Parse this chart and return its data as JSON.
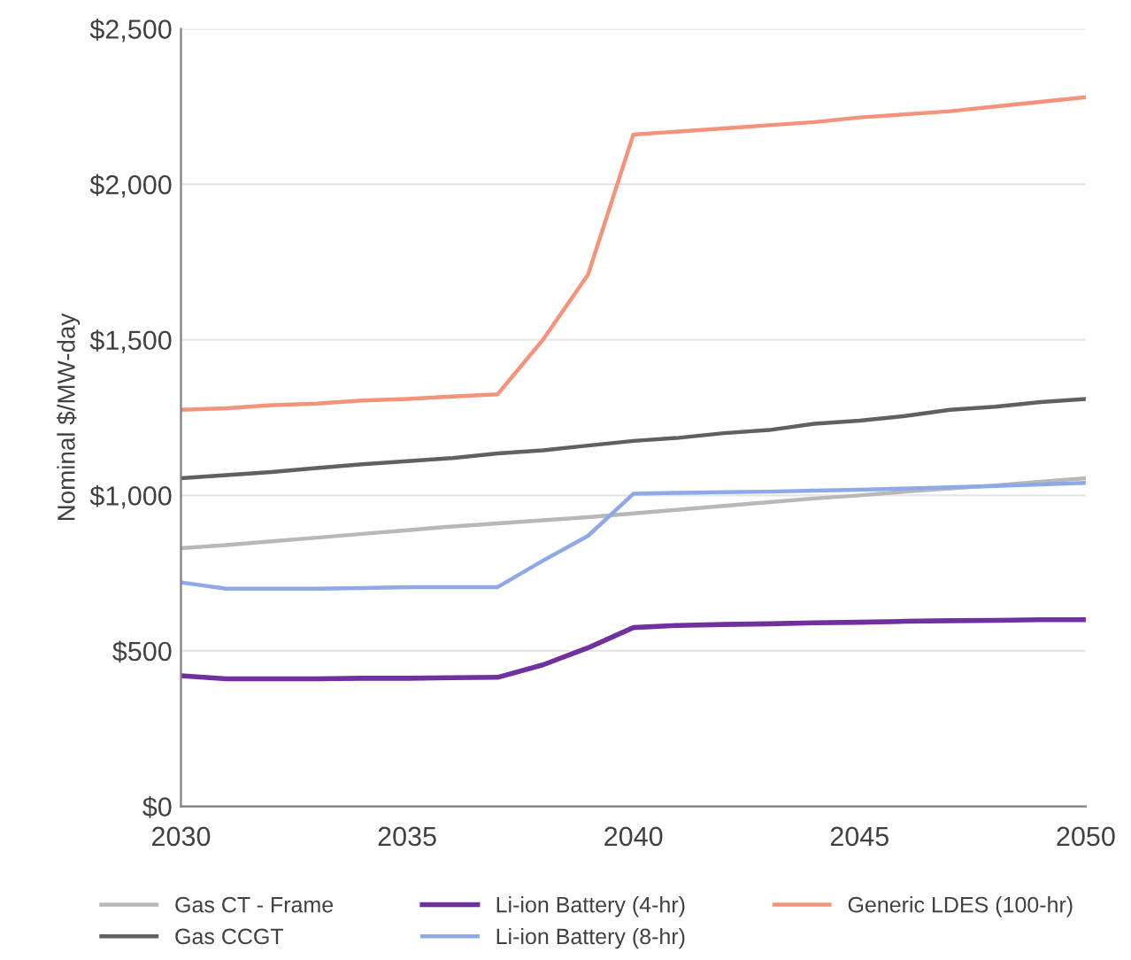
{
  "chart_data": {
    "type": "line",
    "ylabel": "Nominal $/MW-day",
    "x": [
      2030,
      2031,
      2032,
      2033,
      2034,
      2035,
      2036,
      2037,
      2038,
      2039,
      2040,
      2041,
      2042,
      2043,
      2044,
      2045,
      2046,
      2047,
      2048,
      2049,
      2050
    ],
    "series": [
      {
        "name": "Gas CT - Frame",
        "color": "#b8b8b8",
        "values": [
          830,
          840,
          852,
          864,
          876,
          888,
          900,
          910,
          920,
          930,
          942,
          954,
          966,
          978,
          990,
          1000,
          1012,
          1022,
          1032,
          1044,
          1055
        ]
      },
      {
        "name": "Gas CCGT",
        "color": "#606060",
        "values": [
          1055,
          1065,
          1075,
          1088,
          1100,
          1110,
          1120,
          1135,
          1145,
          1160,
          1175,
          1185,
          1200,
          1210,
          1230,
          1240,
          1255,
          1275,
          1285,
          1300,
          1310
        ]
      },
      {
        "name": "Li-ion Battery (4-hr)",
        "color": "#7030a0",
        "values": [
          420,
          410,
          410,
          410,
          412,
          412,
          414,
          415,
          455,
          510,
          575,
          582,
          585,
          587,
          590,
          592,
          595,
          597,
          598,
          600,
          600
        ]
      },
      {
        "name": "Li-ion Battery (8-hr)",
        "color": "#8ea9e8",
        "values": [
          720,
          700,
          700,
          700,
          702,
          705,
          705,
          705,
          790,
          870,
          1005,
          1008,
          1010,
          1012,
          1015,
          1018,
          1022,
          1026,
          1030,
          1035,
          1040
        ]
      },
      {
        "name": "Generic LDES (100-hr)",
        "color": "#f4937a",
        "values": [
          1275,
          1280,
          1290,
          1295,
          1305,
          1310,
          1318,
          1325,
          1500,
          1710,
          2160,
          2170,
          2180,
          2190,
          2200,
          2215,
          2225,
          2235,
          2250,
          2265,
          2280
        ]
      }
    ],
    "xlim": [
      2030,
      2050
    ],
    "xticks": [
      2030,
      2035,
      2040,
      2045,
      2050
    ],
    "ylim": [
      0,
      2500
    ],
    "yticks": [
      {
        "value": 0,
        "label": "$0"
      },
      {
        "value": 500,
        "label": "$500"
      },
      {
        "value": 1000,
        "label": "$1,000"
      },
      {
        "value": 1500,
        "label": "$1,500"
      },
      {
        "value": 2000,
        "label": "$2,000"
      },
      {
        "value": 2500,
        "label": "$2,500"
      }
    ],
    "grid": "y",
    "legend": "bottom",
    "line_style": "solid",
    "marker": "none"
  }
}
